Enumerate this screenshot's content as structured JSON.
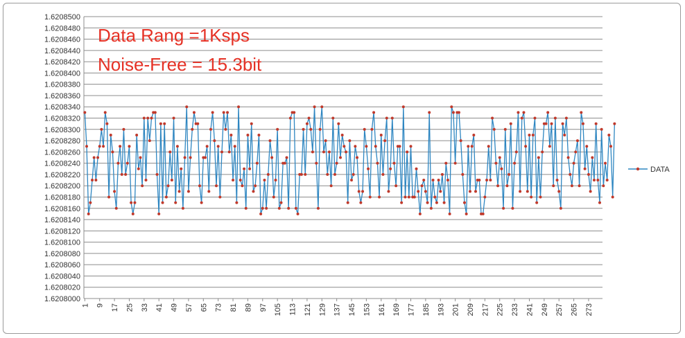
{
  "chart_data": {
    "type": "line",
    "title": "",
    "xlabel": "",
    "ylabel": "",
    "annotations": [
      "Data Rang =1Ksps",
      "Noise-Free = 15.3bit"
    ],
    "legend": {
      "entries": [
        "DATA"
      ],
      "placement": "right"
    },
    "grid": true,
    "ylim": [
      1.6208,
      1.62085
    ],
    "y_ticks": [
      "1.6208000",
      "1.6208020",
      "1.6208040",
      "1.6208060",
      "1.6208080",
      "1.6208100",
      "1.6208120",
      "1.6208140",
      "1.6208160",
      "1.6208180",
      "1.6208200",
      "1.6208220",
      "1.6208240",
      "1.6208260",
      "1.6208280",
      "1.6208300",
      "1.6208320",
      "1.6208340",
      "1.6208360",
      "1.6208380",
      "1.6208400",
      "1.6208420",
      "1.6208440",
      "1.6208460",
      "1.6208480",
      "1.6208500"
    ],
    "x_ticks": [
      "1",
      "9",
      "17",
      "25",
      "33",
      "41",
      "49",
      "57",
      "65",
      "73",
      "81",
      "89",
      "97",
      "105",
      "113",
      "121",
      "129",
      "137",
      "145",
      "153",
      "161",
      "169",
      "177",
      "185",
      "193",
      "201",
      "209",
      "217",
      "225",
      "233",
      "241",
      "249",
      "257",
      "265",
      "273"
    ],
    "xlim": [
      1,
      280
    ],
    "line_color": "#2e86c1",
    "marker_color": "#c0392b",
    "series": [
      {
        "name": "DATA",
        "values": [
          1.620833,
          1.620827,
          1.620815,
          1.620817,
          1.620821,
          1.620825,
          1.620821,
          1.620825,
          1.620827,
          1.62083,
          1.620827,
          1.620833,
          1.620831,
          1.620818,
          1.620829,
          1.620826,
          1.620819,
          1.620816,
          1.620824,
          1.620827,
          1.620822,
          1.62083,
          1.620822,
          1.620824,
          1.620827,
          1.620817,
          1.620815,
          1.620817,
          1.620829,
          1.620823,
          1.620825,
          1.62082,
          1.620832,
          1.620821,
          1.620832,
          1.620828,
          1.620832,
          1.620833,
          1.620833,
          1.620822,
          1.620815,
          1.620831,
          1.620817,
          1.620831,
          1.620818,
          1.62082,
          1.620826,
          1.620821,
          1.620832,
          1.620817,
          1.620827,
          1.620819,
          1.620823,
          1.620816,
          1.620825,
          1.620834,
          1.620819,
          1.620825,
          1.62083,
          1.620833,
          1.620831,
          1.620831,
          1.62082,
          1.620817,
          1.620825,
          1.620825,
          1.620827,
          1.620819,
          1.62083,
          1.620833,
          1.620828,
          1.62082,
          1.620827,
          1.620818,
          1.620826,
          1.620833,
          1.62083,
          1.620833,
          1.620826,
          1.620829,
          1.620821,
          1.620827,
          1.620817,
          1.620834,
          1.620821,
          1.62082,
          1.620823,
          1.620816,
          1.620829,
          1.620823,
          1.620831,
          1.620819,
          1.62082,
          1.620824,
          1.620829,
          1.620815,
          1.620816,
          1.620821,
          1.620816,
          1.620822,
          1.620828,
          1.620825,
          1.620818,
          1.620821,
          1.62083,
          1.620816,
          1.620817,
          1.620824,
          1.620824,
          1.620825,
          1.620816,
          1.620832,
          1.620833,
          1.620833,
          1.620816,
          1.620815,
          1.620822,
          1.620822,
          1.62083,
          1.620822,
          1.620831,
          1.620832,
          1.62083,
          1.620826,
          1.620834,
          1.620824,
          1.620816,
          1.62083,
          1.620834,
          1.620826,
          1.620828,
          1.620822,
          1.620826,
          1.62082,
          1.620832,
          1.620822,
          1.620824,
          1.620831,
          1.620825,
          1.620829,
          1.620827,
          1.620826,
          1.620817,
          1.620828,
          1.620821,
          1.620822,
          1.620827,
          1.620825,
          1.620819,
          1.620817,
          1.620819,
          1.62083,
          1.620827,
          1.620823,
          1.620818,
          1.62083,
          1.620833,
          1.620827,
          1.620824,
          1.620818,
          1.620829,
          1.620822,
          1.620828,
          1.620832,
          1.620819,
          1.620823,
          1.620832,
          1.620824,
          1.62082,
          1.620827,
          1.620827,
          1.620817,
          1.620834,
          1.620818,
          1.620826,
          1.620818,
          1.620827,
          1.620818,
          1.620818,
          1.620823,
          1.620819,
          1.620815,
          1.62082,
          1.620821,
          1.620819,
          1.620817,
          1.620833,
          1.620816,
          1.620821,
          1.620818,
          1.620817,
          1.620821,
          1.620819,
          1.620822,
          1.620817,
          1.620824,
          1.620821,
          1.620815,
          1.620834,
          1.620833,
          1.620824,
          1.620833,
          1.620833,
          1.620828,
          1.620822,
          1.620817,
          1.620815,
          1.620827,
          1.620819,
          1.620827,
          1.620829,
          1.620819,
          1.620821,
          1.620821,
          1.620815,
          1.620815,
          1.620818,
          1.620821,
          1.620827,
          1.620821,
          1.620832,
          1.62083,
          1.620824,
          1.62082,
          1.620825,
          1.620823,
          1.620816,
          1.62083,
          1.62082,
          1.620822,
          1.620831,
          1.620816,
          1.620824,
          1.620826,
          1.620833,
          1.620819,
          1.620832,
          1.620833,
          1.620827,
          1.620819,
          1.620829,
          1.620818,
          1.620829,
          1.620832,
          1.620817,
          1.620825,
          1.620818,
          1.620826,
          1.620831,
          1.620831,
          1.620833,
          1.620827,
          1.620831,
          1.62082,
          1.620832,
          1.620821,
          1.620819,
          1.620816,
          1.620831,
          1.620829,
          1.620832,
          1.620825,
          1.620822,
          1.62082,
          1.620824,
          1.620826,
          1.620828,
          1.62082,
          1.620833,
          1.620831,
          1.620823,
          1.620827,
          1.620822,
          1.620819,
          1.620825,
          1.620821,
          1.620831,
          1.620821,
          1.620817,
          1.62083,
          1.62082,
          1.620824,
          1.620821,
          1.620829,
          1.620827,
          1.620818,
          1.620831
        ]
      }
    ]
  }
}
